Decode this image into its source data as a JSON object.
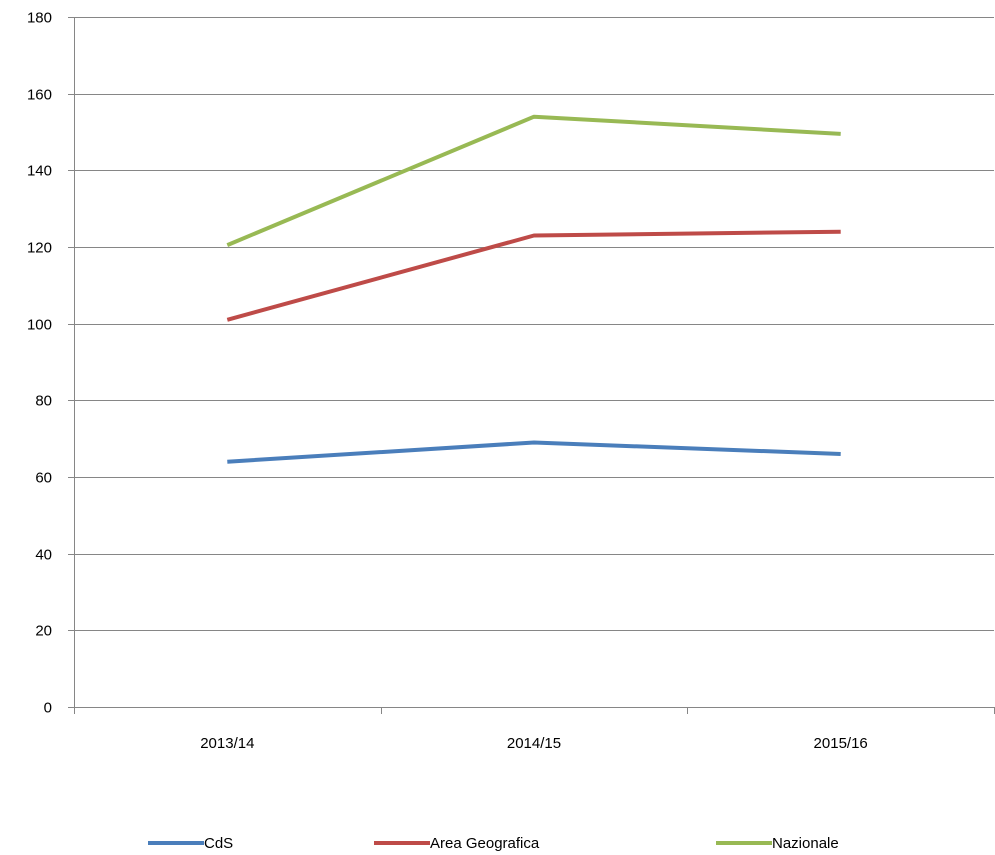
{
  "chart_data": {
    "type": "line",
    "title": "",
    "xlabel": "",
    "ylabel": "",
    "categories": [
      "2013/14",
      "2014/15",
      "2015/16"
    ],
    "ylim": [
      0,
      180
    ],
    "yticks": [
      0,
      20,
      40,
      60,
      80,
      100,
      120,
      140,
      160,
      180
    ],
    "grid": true,
    "legend_position": "bottom",
    "series": [
      {
        "name": "CdS",
        "values": [
          64,
          69,
          66
        ],
        "color": "#4a7ebb"
      },
      {
        "name": "Area Geografica",
        "values": [
          101,
          123,
          124
        ],
        "color": "#be4b48"
      },
      {
        "name": "Nazionale",
        "values": [
          120.5,
          154,
          149.5
        ],
        "color": "#98b954"
      }
    ]
  }
}
